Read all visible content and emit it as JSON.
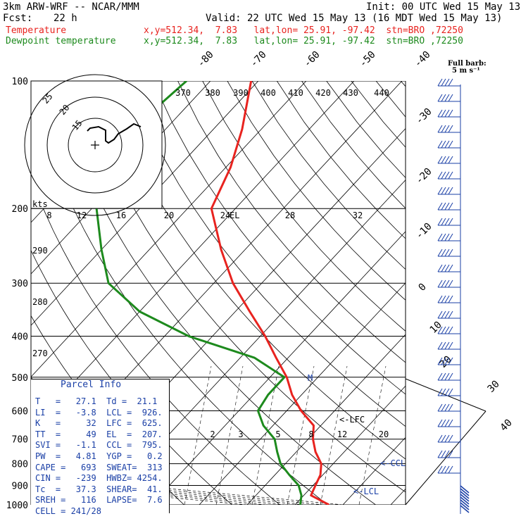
{
  "header": {
    "model": "3km ARW-WRF -- NCAR/MMM",
    "init": "Init: 00 UTC Wed 15 May 13",
    "fcst_label": "Fcst:",
    "fcst_value": "22 h",
    "valid": "Valid: 22 UTC Wed 15 May 13 (16 MDT Wed 15 May 13)",
    "temp_label": "Temperature",
    "temp_info": "x,y=512.34,  7.83   lat,lon= 25.91, -97.42  stn=BRO ,72250",
    "dew_label": "Dewpoint temperature",
    "dew_info": "x,y=512.34,  7.83   lat,lon= 25.91, -97.42  stn=BRO ,72250",
    "full_barb_1": "Full barb:",
    "full_barb_2": "5 m s⁻¹"
  },
  "parcel_info": {
    "title": "Parcel Info",
    "rows": [
      "T   =   27.1  Td =  21.1",
      "LI  =   -3.8  LCL =  926.",
      "K   =     32  LFC =  625.",
      "TT  =     49  EL  =  207.",
      "SVI =   -1.1  CCL =  795.",
      "PW  =   4.81  YGP =   0.2",
      "CAPE =   693  SWEAT=  313",
      "CIN =   -239  HWBZ= 4254.",
      "Tc  =   37.3  SHEAR=  41.",
      "SREH =   116  LAPSE=  7.6",
      "CELL = 241/28"
    ]
  },
  "chart_data": {
    "type": "line",
    "title": "Skew-T log-P",
    "pressure_levels": [
      "100",
      "200",
      "300",
      "400",
      "500",
      "600",
      "700",
      "800",
      "900",
      "1000"
    ],
    "isotherm_labels": [
      "-80",
      "-70",
      "-60",
      "-50",
      "-40",
      "-30",
      "-20",
      "-10",
      "0",
      "10",
      "20",
      "30",
      "40"
    ],
    "theta_labels": [
      "370",
      "380",
      "390",
      "400",
      "410",
      "420",
      "430",
      "440"
    ],
    "theta_left_labels": [
      "290",
      "280",
      "270"
    ],
    "hodo_speed_labels": [
      "8",
      "12",
      "16",
      "20",
      "24",
      "28",
      "32"
    ],
    "hodo_kts": "kts",
    "hodo_ring_labels": [
      "25",
      "20",
      "15"
    ],
    "mixing_ratio_labels": [
      "2",
      "3",
      "5",
      "8",
      "12",
      "20"
    ],
    "markers": {
      "el": "EL",
      "lfc": "<-LFC",
      "ccl": "<-CCL",
      "lcl": "<-LCL",
      "m": "M"
    },
    "series": [
      {
        "name": "Temperature",
        "color": "#e8231f",
        "points": [
          [
            100,
            -71.5
          ],
          [
            130,
            -64
          ],
          [
            160,
            -59
          ],
          [
            200,
            -55
          ],
          [
            250,
            -45
          ],
          [
            300,
            -36
          ],
          [
            350,
            -27
          ],
          [
            400,
            -19
          ],
          [
            450,
            -12.5
          ],
          [
            500,
            -6.5
          ],
          [
            550,
            -2
          ],
          [
            600,
            3
          ],
          [
            650,
            8.5
          ],
          [
            700,
            11
          ],
          [
            750,
            14
          ],
          [
            800,
            17.5
          ],
          [
            850,
            19.5
          ],
          [
            900,
            20.5
          ],
          [
            950,
            21.5
          ],
          [
            1000,
            27.1
          ]
        ]
      },
      {
        "name": "Dewpoint temperature",
        "color": "#1d8a1d",
        "points": [
          [
            100,
            -85
          ],
          [
            130,
            -87
          ],
          [
            160,
            -85
          ],
          [
            200,
            -79
          ],
          [
            250,
            -70
          ],
          [
            300,
            -62
          ],
          [
            350,
            -50
          ],
          [
            400,
            -35
          ],
          [
            450,
            -17
          ],
          [
            500,
            -7
          ],
          [
            550,
            -7
          ],
          [
            600,
            -6
          ],
          [
            650,
            -2
          ],
          [
            700,
            3
          ],
          [
            750,
            6
          ],
          [
            800,
            9
          ],
          [
            850,
            13
          ],
          [
            900,
            17
          ],
          [
            950,
            19.5
          ],
          [
            1000,
            21.1
          ]
        ]
      }
    ],
    "wind_barbs": {
      "count_levels": 26
    },
    "colors": {
      "axes": "#000000",
      "isotherm": "#000000",
      "dry_adiabat": "#000000",
      "moist_adiabat": "#000000",
      "text_blue": "#1a3fa6"
    }
  }
}
